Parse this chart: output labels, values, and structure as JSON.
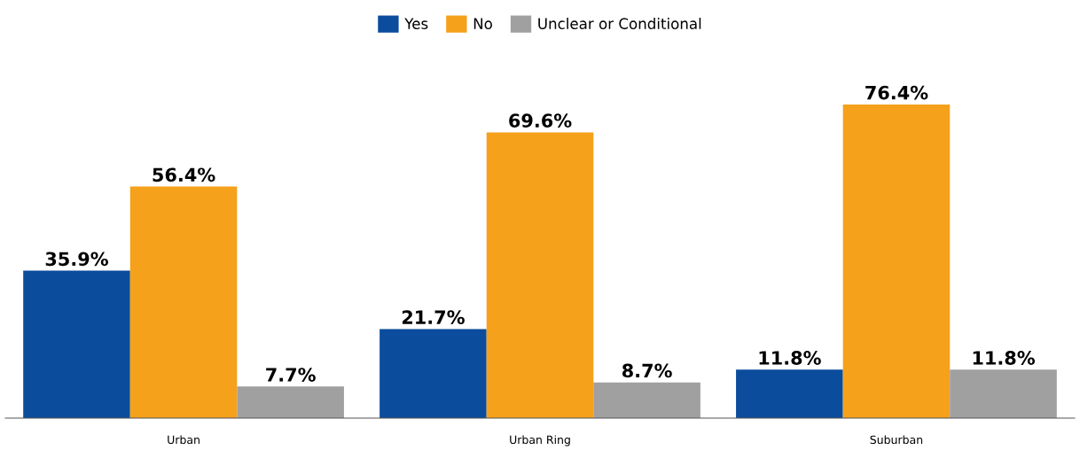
{
  "chart_data": {
    "type": "bar",
    "categories": [
      "Urban",
      "Urban Ring",
      "Suburban"
    ],
    "series": [
      {
        "name": "Yes",
        "color": "#0b4c9c",
        "values": [
          35.9,
          21.7,
          11.8
        ],
        "value_labels": [
          "35.9%",
          "21.7%",
          "11.8%"
        ]
      },
      {
        "name": "No",
        "color": "#f5a11c",
        "values": [
          56.4,
          69.6,
          76.4
        ],
        "value_labels": [
          "56.4%",
          "69.6%",
          "76.4%"
        ]
      },
      {
        "name": "Unclear or Conditional",
        "color": "#a0a0a0",
        "values": [
          7.7,
          8.7,
          11.8
        ],
        "value_labels": [
          "7.7%",
          "8.7%",
          "11.8%"
        ]
      }
    ],
    "legend": "top",
    "grid": false,
    "tick_labels": "x"
  }
}
